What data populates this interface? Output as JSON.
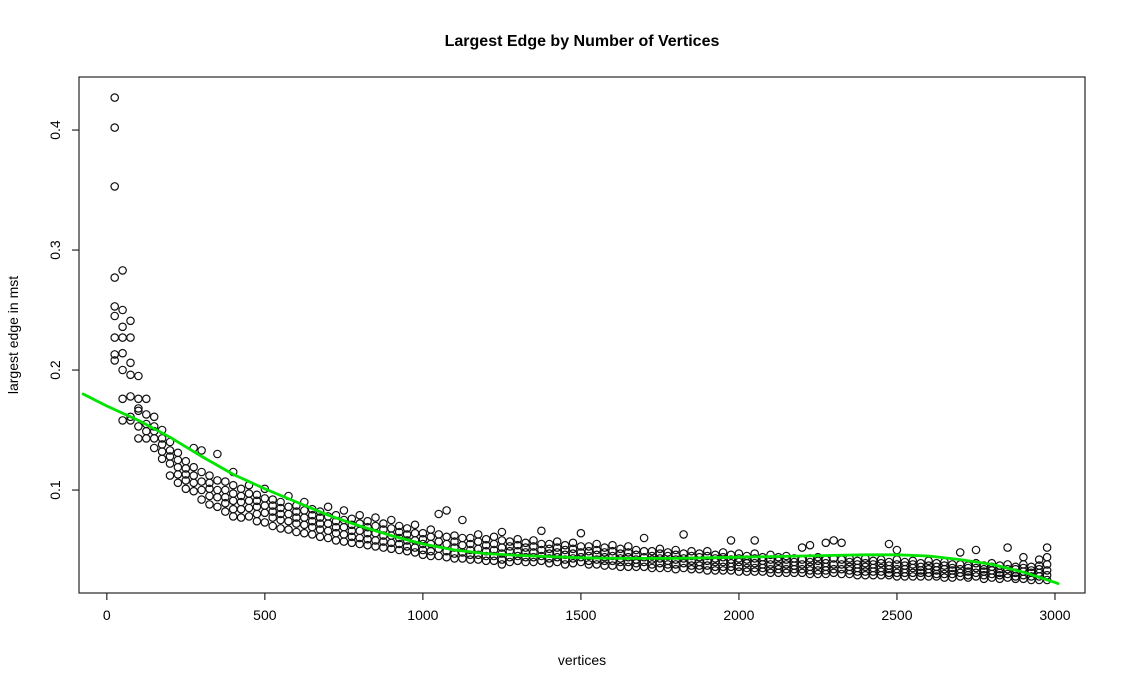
{
  "chart_data": {
    "type": "scatter",
    "title": "Largest Edge by Number of Vertices",
    "xlabel": "vertices",
    "ylabel": "largest edge in mst",
    "xlim": [
      -88,
      3095
    ],
    "ylim": [
      0.0142,
      0.4442
    ],
    "x_ticks": [
      0,
      500,
      1000,
      1500,
      2000,
      2500,
      3000
    ],
    "x_tick_labels": [
      "0",
      "500",
      "1000",
      "1500",
      "2000",
      "2500",
      "3000"
    ],
    "y_ticks": [
      0.1,
      0.2,
      0.3,
      0.4
    ],
    "y_tick_labels": [
      "0.1",
      "0.2",
      "0.3",
      "0.4"
    ],
    "grid": false,
    "legend": "none",
    "marker": "open-circle",
    "point_style": {
      "radius": 3.7,
      "stroke_width": 1.2
    },
    "colors": {
      "points": "#101010",
      "trend": "#00e400",
      "axis": "#262626",
      "text": "#000000"
    },
    "trend": {
      "type": "smooth-fit",
      "points": [
        [
          -75,
          0.18
        ],
        [
          0,
          0.17
        ],
        [
          100,
          0.158
        ],
        [
          200,
          0.144
        ],
        [
          300,
          0.128
        ],
        [
          400,
          0.113
        ],
        [
          500,
          0.101
        ],
        [
          600,
          0.09
        ],
        [
          700,
          0.079
        ],
        [
          800,
          0.07
        ],
        [
          900,
          0.062
        ],
        [
          1000,
          0.055
        ],
        [
          1100,
          0.05
        ],
        [
          1200,
          0.047
        ],
        [
          1300,
          0.0455
        ],
        [
          1400,
          0.0445
        ],
        [
          1500,
          0.0435
        ],
        [
          1600,
          0.043
        ],
        [
          1700,
          0.043
        ],
        [
          1800,
          0.043
        ],
        [
          1900,
          0.0435
        ],
        [
          2000,
          0.044
        ],
        [
          2100,
          0.0445
        ],
        [
          2200,
          0.045
        ],
        [
          2300,
          0.0455
        ],
        [
          2400,
          0.046
        ],
        [
          2500,
          0.046
        ],
        [
          2600,
          0.045
        ],
        [
          2700,
          0.042
        ],
        [
          2800,
          0.038
        ],
        [
          2900,
          0.0315
        ],
        [
          3000,
          0.023
        ],
        [
          3010,
          0.022
        ]
      ]
    },
    "scatter_groups": [
      [
        25,
        0.427,
        0.402,
        0.353,
        0.277,
        0.253,
        0.245,
        0.227,
        0.213,
        0.208
      ],
      [
        50,
        0.283,
        0.25,
        0.236,
        0.227,
        0.214,
        0.2,
        0.176,
        0.158
      ],
      [
        75,
        0.241,
        0.227,
        0.206,
        0.196,
        0.178,
        0.161,
        0.158
      ],
      [
        100,
        0.195,
        0.176,
        0.168,
        0.166,
        0.153,
        0.143
      ],
      [
        125,
        0.176,
        0.163,
        0.155,
        0.149,
        0.143
      ],
      [
        150,
        0.161,
        0.153,
        0.149,
        0.143,
        0.135
      ],
      [
        175,
        0.15,
        0.143,
        0.138,
        0.132,
        0.126
      ],
      [
        200,
        0.14,
        0.133,
        0.128,
        0.122,
        0.112
      ],
      [
        225,
        0.131,
        0.125,
        0.119,
        0.113,
        0.106
      ],
      [
        250,
        0.124,
        0.118,
        0.113,
        0.108,
        0.101
      ],
      [
        275,
        0.135,
        0.119,
        0.112,
        0.106,
        0.099
      ],
      [
        300,
        0.133,
        0.115,
        0.107,
        0.1,
        0.092
      ],
      [
        325,
        0.112,
        0.106,
        0.101,
        0.095,
        0.088
      ],
      [
        350,
        0.13,
        0.108,
        0.1,
        0.094,
        0.086
      ],
      [
        375,
        0.107,
        0.1,
        0.094,
        0.089,
        0.082
      ],
      [
        400,
        0.115,
        0.104,
        0.097,
        0.091,
        0.084,
        0.078
      ],
      [
        425,
        0.101,
        0.095,
        0.09,
        0.084,
        0.077
      ],
      [
        450,
        0.104,
        0.097,
        0.091,
        0.085,
        0.078
      ],
      [
        475,
        0.096,
        0.091,
        0.086,
        0.08,
        0.074
      ],
      [
        500,
        0.101,
        0.093,
        0.087,
        0.081,
        0.073
      ],
      [
        525,
        0.092,
        0.087,
        0.082,
        0.077,
        0.07
      ],
      [
        550,
        0.09,
        0.085,
        0.08,
        0.075,
        0.068
      ],
      [
        575,
        0.095,
        0.086,
        0.08,
        0.074,
        0.067
      ],
      [
        600,
        0.087,
        0.082,
        0.077,
        0.072,
        0.065
      ],
      [
        625,
        0.09,
        0.083,
        0.077,
        0.071,
        0.064
      ],
      [
        650,
        0.084,
        0.079,
        0.074,
        0.069,
        0.063
      ],
      [
        675,
        0.082,
        0.077,
        0.072,
        0.067,
        0.061
      ],
      [
        700,
        0.086,
        0.078,
        0.072,
        0.066,
        0.06
      ],
      [
        725,
        0.079,
        0.074,
        0.069,
        0.064,
        0.058
      ],
      [
        750,
        0.083,
        0.075,
        0.069,
        0.063,
        0.057
      ],
      [
        775,
        0.076,
        0.071,
        0.066,
        0.061,
        0.056
      ],
      [
        800,
        0.079,
        0.072,
        0.066,
        0.06,
        0.055
      ],
      [
        825,
        0.074,
        0.069,
        0.064,
        0.059,
        0.054
      ],
      [
        850,
        0.077,
        0.07,
        0.064,
        0.058,
        0.053
      ],
      [
        875,
        0.072,
        0.067,
        0.062,
        0.057,
        0.052
      ],
      [
        900,
        0.075,
        0.068,
        0.062,
        0.056,
        0.051
      ],
      [
        925,
        0.07,
        0.065,
        0.06,
        0.055,
        0.05
      ],
      [
        950,
        0.068,
        0.063,
        0.058,
        0.053,
        0.049
      ],
      [
        975,
        0.071,
        0.064,
        0.058,
        0.052,
        0.048
      ],
      [
        1000,
        0.064,
        0.059,
        0.055,
        0.05,
        0.046
      ],
      [
        1025,
        0.067,
        0.061,
        0.055,
        0.049,
        0.045
      ],
      [
        1050,
        0.08,
        0.063,
        0.057,
        0.051,
        0.045
      ],
      [
        1075,
        0.083,
        0.061,
        0.055,
        0.049,
        0.044
      ],
      [
        1100,
        0.062,
        0.057,
        0.052,
        0.047,
        0.043
      ],
      [
        1125,
        0.075,
        0.06,
        0.054,
        0.048,
        0.043
      ],
      [
        1150,
        0.06,
        0.055,
        0.05,
        0.046,
        0.042
      ],
      [
        1175,
        0.063,
        0.057,
        0.051,
        0.046,
        0.042
      ],
      [
        1200,
        0.059,
        0.054,
        0.049,
        0.045,
        0.041
      ],
      [
        1225,
        0.061,
        0.055,
        0.05,
        0.045,
        0.041
      ],
      [
        1250,
        0.065,
        0.058,
        0.052,
        0.047,
        0.042,
        0.038
      ],
      [
        1275,
        0.057,
        0.053,
        0.049,
        0.044,
        0.04
      ],
      [
        1300,
        0.059,
        0.054,
        0.049,
        0.045,
        0.041
      ],
      [
        1325,
        0.056,
        0.052,
        0.048,
        0.044,
        0.04
      ],
      [
        1350,
        0.058,
        0.053,
        0.048,
        0.044,
        0.04
      ],
      [
        1375,
        0.066,
        0.055,
        0.05,
        0.045,
        0.041
      ],
      [
        1400,
        0.055,
        0.051,
        0.047,
        0.043,
        0.039
      ],
      [
        1425,
        0.057,
        0.052,
        0.048,
        0.044,
        0.04
      ],
      [
        1450,
        0.054,
        0.05,
        0.046,
        0.042,
        0.038
      ],
      [
        1475,
        0.056,
        0.051,
        0.047,
        0.043,
        0.039
      ],
      [
        1500,
        0.064,
        0.053,
        0.048,
        0.044,
        0.04
      ],
      [
        1525,
        0.053,
        0.049,
        0.045,
        0.041,
        0.038
      ],
      [
        1550,
        0.055,
        0.05,
        0.046,
        0.042,
        0.038
      ],
      [
        1575,
        0.052,
        0.048,
        0.044,
        0.041,
        0.037
      ],
      [
        1600,
        0.054,
        0.049,
        0.045,
        0.041,
        0.037
      ],
      [
        1625,
        0.051,
        0.047,
        0.043,
        0.04,
        0.036
      ],
      [
        1650,
        0.053,
        0.048,
        0.044,
        0.04,
        0.036
      ],
      [
        1675,
        0.05,
        0.046,
        0.042,
        0.039,
        0.036
      ],
      [
        1700,
        0.06,
        0.049,
        0.044,
        0.04,
        0.036
      ],
      [
        1725,
        0.049,
        0.045,
        0.042,
        0.038,
        0.035
      ],
      [
        1750,
        0.051,
        0.047,
        0.043,
        0.039,
        0.035
      ],
      [
        1775,
        0.048,
        0.045,
        0.041,
        0.038,
        0.035
      ],
      [
        1800,
        0.05,
        0.046,
        0.042,
        0.038,
        0.034
      ],
      [
        1825,
        0.063,
        0.047,
        0.043,
        0.039,
        0.035
      ],
      [
        1850,
        0.049,
        0.045,
        0.041,
        0.037,
        0.034
      ],
      [
        1875,
        0.047,
        0.044,
        0.04,
        0.037,
        0.034
      ],
      [
        1900,
        0.049,
        0.045,
        0.041,
        0.037,
        0.033
      ],
      [
        1925,
        0.046,
        0.043,
        0.04,
        0.036,
        0.033
      ],
      [
        1950,
        0.048,
        0.044,
        0.04,
        0.036,
        0.033
      ],
      [
        1975,
        0.058,
        0.046,
        0.042,
        0.039,
        0.036,
        0.033
      ],
      [
        2000,
        0.047,
        0.043,
        0.04,
        0.036,
        0.032
      ],
      [
        2025,
        0.045,
        0.042,
        0.039,
        0.035,
        0.032
      ],
      [
        2050,
        0.058,
        0.047,
        0.043,
        0.039,
        0.035,
        0.032
      ],
      [
        2075,
        0.044,
        0.041,
        0.038,
        0.035,
        0.032
      ],
      [
        2100,
        0.046,
        0.042,
        0.038,
        0.034,
        0.031
      ],
      [
        2125,
        0.044,
        0.041,
        0.037,
        0.034,
        0.031
      ],
      [
        2150,
        0.045,
        0.042,
        0.038,
        0.034,
        0.031
      ],
      [
        2175,
        0.043,
        0.04,
        0.037,
        0.034,
        0.031
      ],
      [
        2200,
        0.052,
        0.042,
        0.038,
        0.034,
        0.031
      ],
      [
        2225,
        0.054,
        0.043,
        0.04,
        0.036,
        0.033,
        0.03
      ],
      [
        2250,
        0.044,
        0.041,
        0.037,
        0.033,
        0.03
      ],
      [
        2275,
        0.056,
        0.042,
        0.039,
        0.036,
        0.033,
        0.03
      ],
      [
        2300,
        0.058,
        0.043,
        0.038,
        0.034,
        0.031
      ],
      [
        2325,
        0.056,
        0.042,
        0.038,
        0.034,
        0.03
      ],
      [
        2350,
        0.043,
        0.04,
        0.036,
        0.033,
        0.03
      ],
      [
        2375,
        0.041,
        0.038,
        0.035,
        0.032,
        0.029
      ],
      [
        2400,
        0.043,
        0.039,
        0.036,
        0.032,
        0.029
      ],
      [
        2425,
        0.041,
        0.038,
        0.035,
        0.032,
        0.029
      ],
      [
        2450,
        0.042,
        0.039,
        0.035,
        0.032,
        0.029
      ],
      [
        2475,
        0.055,
        0.04,
        0.037,
        0.034,
        0.031,
        0.029
      ],
      [
        2500,
        0.05,
        0.042,
        0.038,
        0.034,
        0.031,
        0.028
      ],
      [
        2525,
        0.04,
        0.037,
        0.034,
        0.031,
        0.028
      ],
      [
        2550,
        0.041,
        0.038,
        0.035,
        0.031,
        0.028
      ],
      [
        2575,
        0.039,
        0.036,
        0.033,
        0.031,
        0.028
      ],
      [
        2600,
        0.041,
        0.037,
        0.034,
        0.031,
        0.028
      ],
      [
        2625,
        0.039,
        0.036,
        0.033,
        0.03,
        0.028
      ],
      [
        2650,
        0.04,
        0.037,
        0.034,
        0.03,
        0.027
      ],
      [
        2675,
        0.038,
        0.035,
        0.033,
        0.03,
        0.027
      ],
      [
        2700,
        0.048,
        0.038,
        0.034,
        0.031,
        0.028
      ],
      [
        2725,
        0.037,
        0.035,
        0.032,
        0.029,
        0.027
      ],
      [
        2750,
        0.05,
        0.039,
        0.035,
        0.031,
        0.028
      ],
      [
        2775,
        0.037,
        0.034,
        0.032,
        0.029,
        0.026
      ],
      [
        2800,
        0.039,
        0.036,
        0.033,
        0.03,
        0.027
      ],
      [
        2825,
        0.037,
        0.034,
        0.031,
        0.029,
        0.026
      ],
      [
        2850,
        0.052,
        0.038,
        0.034,
        0.03,
        0.027
      ],
      [
        2875,
        0.036,
        0.034,
        0.031,
        0.028,
        0.026
      ],
      [
        2900,
        0.044,
        0.038,
        0.035,
        0.032,
        0.029,
        0.026
      ],
      [
        2925,
        0.036,
        0.033,
        0.031,
        0.028,
        0.025
      ],
      [
        2950,
        0.042,
        0.037,
        0.034,
        0.031,
        0.028,
        0.025
      ],
      [
        2975,
        0.052,
        0.044,
        0.038,
        0.033,
        0.029,
        0.025
      ]
    ]
  }
}
